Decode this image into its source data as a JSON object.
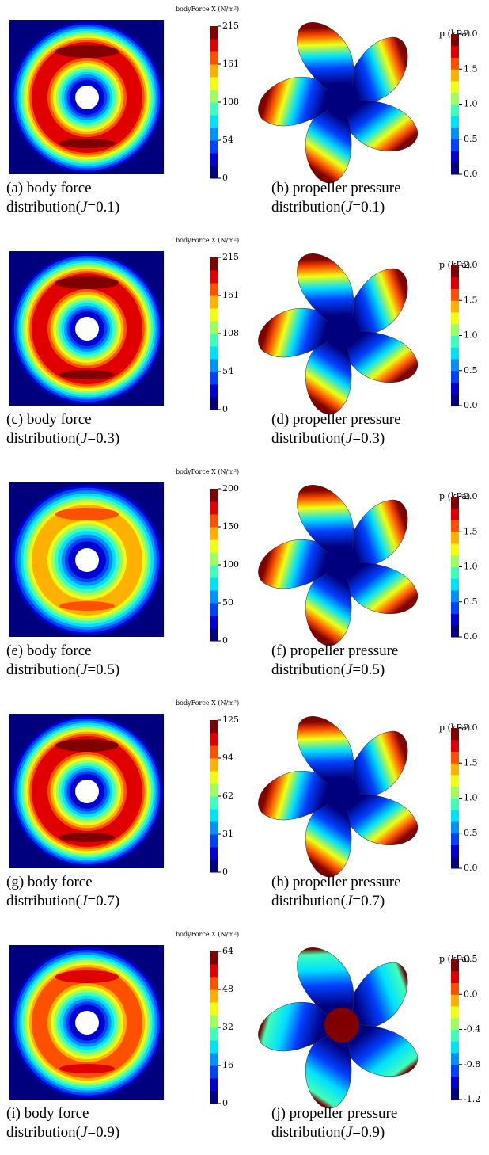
{
  "figures": [
    {
      "colorbar_title": "bodyForce X (N/m²)",
      "ticks": [
        "0",
        "54",
        "108",
        "161",
        "215"
      ],
      "caption_line1": "(a) body force",
      "caption_pre": "distribution(",
      "caption_var": "J",
      "caption_post": "=0.1)"
    },
    {
      "colorbar_title": "p (kPa)",
      "ticks": [
        "0.0",
        "0.5",
        "1.0",
        "1.5",
        "2.0"
      ],
      "caption_line1": "(b) propeller pressure",
      "caption_pre": "distribution(",
      "caption_var": "J",
      "caption_post": "=0.1)"
    },
    {
      "colorbar_title": "bodyForce X (N/m²)",
      "ticks": [
        "0",
        "54",
        "108",
        "161",
        "215"
      ],
      "caption_line1": "(c) body force",
      "caption_pre": "distribution(",
      "caption_var": "J",
      "caption_post": "=0.3)"
    },
    {
      "colorbar_title": "p (kPa)",
      "ticks": [
        "0.0",
        "0.5",
        "1.0",
        "1.5",
        "2.0"
      ],
      "caption_line1": "(d) propeller pressure",
      "caption_pre": "distribution(",
      "caption_var": "J",
      "caption_post": "=0.3)"
    },
    {
      "colorbar_title": "bodyForce X (N/m²)",
      "ticks": [
        "0",
        "50",
        "100",
        "150",
        "200"
      ],
      "caption_line1": "(e) body force",
      "caption_pre": "distribution(",
      "caption_var": "J",
      "caption_post": "=0.5)"
    },
    {
      "colorbar_title": "p (kPa)",
      "ticks": [
        "0.0",
        "0.5",
        "1.0",
        "1.5",
        "2.0"
      ],
      "caption_line1": "(f) propeller pressure",
      "caption_pre": "distribution(",
      "caption_var": "J",
      "caption_post": "=0.5)"
    },
    {
      "colorbar_title": "bodyForce X (N/m²)",
      "ticks": [
        "0",
        "31",
        "62",
        "94",
        "125"
      ],
      "caption_line1": "(g) body force",
      "caption_pre": "distribution(",
      "caption_var": "J",
      "caption_post": "=0.7)"
    },
    {
      "colorbar_title": "p (kPa)",
      "ticks": [
        "0.0",
        "0.5",
        "1.0",
        "1.5",
        "2.0"
      ],
      "caption_line1": "(h) propeller pressure",
      "caption_pre": "distribution(",
      "caption_var": "J",
      "caption_post": "=0.7)"
    },
    {
      "colorbar_title": "bodyForce X (N/m²)",
      "ticks": [
        "0",
        "16",
        "32",
        "48",
        "64"
      ],
      "caption_line1": "(i) body force",
      "caption_pre": "distribution(",
      "caption_var": "J",
      "caption_post": "=0.9)"
    },
    {
      "colorbar_title": "p (kPa)",
      "ticks": [
        "-1.2",
        "-0.8",
        "-0.4",
        "0.0",
        "0.5"
      ],
      "caption_line1": "(j) propeller pressure",
      "caption_pre": "distribution(",
      "caption_var": "J",
      "caption_post": "=0.9)"
    }
  ]
}
